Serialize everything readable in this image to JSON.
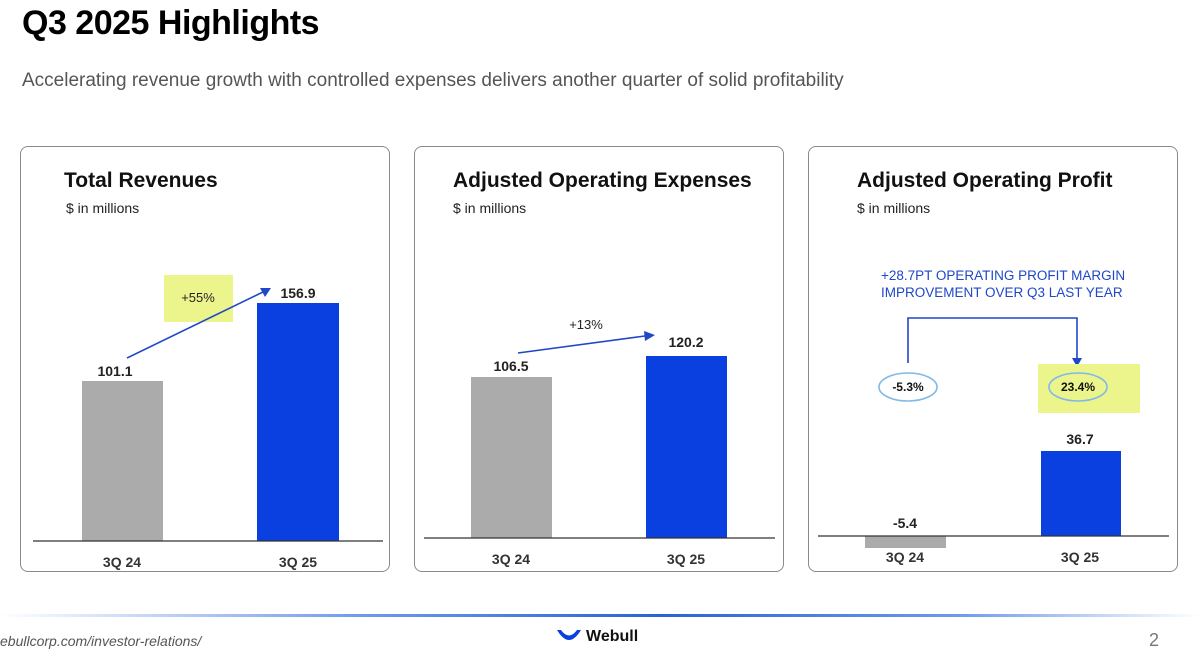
{
  "page": {
    "title": "Q3 2025 Highlights",
    "subtitle": "Accelerating revenue growth with controlled expenses delivers another quarter of solid profitability"
  },
  "colors": {
    "prior_bar": "#ababab",
    "current_bar": "#0a3fe0",
    "arrow": "#1f47c8",
    "highlight": "#ecf58c"
  },
  "chart_data": [
    {
      "type": "bar",
      "title": "Total Revenues",
      "unit_label": "$ in millions",
      "categories": [
        "3Q 24",
        "3Q 25"
      ],
      "values": [
        101.1,
        156.9
      ],
      "value_labels": [
        "101.1",
        "156.9"
      ],
      "ylim": [
        0,
        180
      ],
      "annotation": "+55%",
      "annotation_highlighted": true
    },
    {
      "type": "bar",
      "title": "Adjusted Operating Expenses",
      "unit_label": "$ in millions",
      "categories": [
        "3Q 24",
        "3Q 25"
      ],
      "values": [
        106.5,
        120.2
      ],
      "value_labels": [
        "106.5",
        "120.2"
      ],
      "ylim": [
        0,
        180
      ],
      "annotation": "+13%",
      "annotation_highlighted": false
    },
    {
      "type": "bar",
      "title": "Adjusted Operating Profit",
      "unit_label": "$ in millions",
      "categories": [
        "3Q 24",
        "3Q 25"
      ],
      "values": [
        -5.4,
        36.7
      ],
      "value_labels": [
        "-5.4",
        "36.7"
      ],
      "ylim": [
        -6,
        62
      ],
      "margin_note": "+28.7PT OPERATING PROFIT MARGIN IMPROVEMENT OVER Q3 LAST YEAR",
      "margins": [
        "-5.3%",
        "23.4%"
      ]
    }
  ],
  "footer": {
    "url": "ebullcorp.com/investor-relations/",
    "logo_text": "Webull",
    "page_number": "2"
  }
}
